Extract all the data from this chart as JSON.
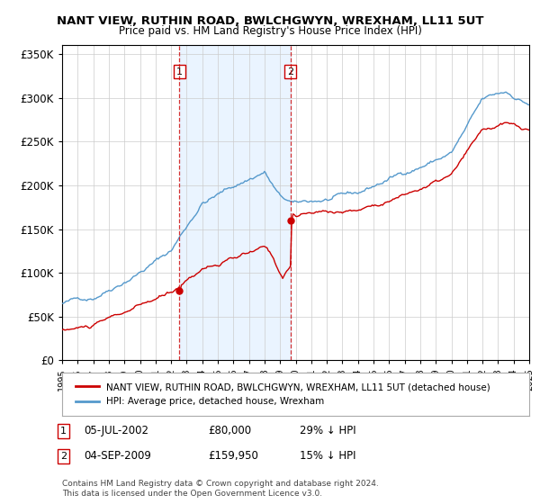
{
  "title": "NANT VIEW, RUTHIN ROAD, BWLCHGWYN, WREXHAM, LL11 5UT",
  "subtitle": "Price paid vs. HM Land Registry's House Price Index (HPI)",
  "ylim": [
    0,
    360000
  ],
  "yticks": [
    0,
    50000,
    100000,
    150000,
    200000,
    250000,
    300000,
    350000
  ],
  "ytick_labels": [
    "£0",
    "£50K",
    "£100K",
    "£150K",
    "£200K",
    "£250K",
    "£300K",
    "£350K"
  ],
  "property_color": "#cc0000",
  "hpi_color": "#5599cc",
  "shade_color": "#ddeeff",
  "marker1_date_num": 2002.54,
  "marker1_label": "1",
  "marker1_date_text": "05-JUL-2002",
  "marker1_price": "£80,000",
  "marker1_hpi": "29% ↓ HPI",
  "marker2_date_num": 2009.67,
  "marker2_label": "2",
  "marker2_date_text": "04-SEP-2009",
  "marker2_price": "£159,950",
  "marker2_hpi": "15% ↓ HPI",
  "legend_property": "NANT VIEW, RUTHIN ROAD, BWLCHGWYN, WREXHAM, LL11 5UT (detached house)",
  "legend_hpi": "HPI: Average price, detached house, Wrexham",
  "footnote": "Contains HM Land Registry data © Crown copyright and database right 2024.\nThis data is licensed under the Open Government Licence v3.0.",
  "xmin": 1995,
  "xmax": 2025
}
